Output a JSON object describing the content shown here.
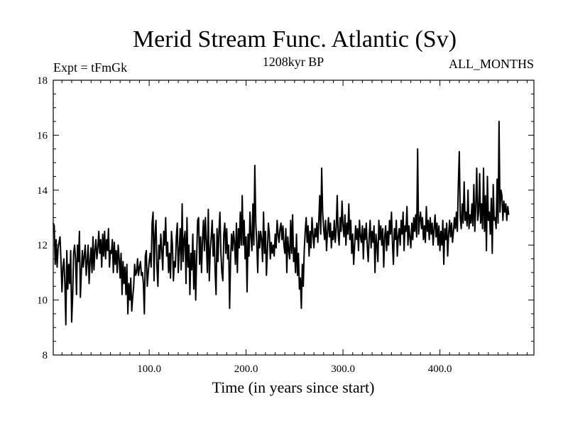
{
  "chart_data": {
    "type": "line",
    "title": "Merid Stream Func. Atlantic (Sv)",
    "subtitle_left": "Expt = tFmGk",
    "subtitle_center": "1208kyr BP",
    "subtitle_right": "ALL_MONTHS",
    "xlabel": "Time (in years since start)",
    "ylabel": "",
    "xlim": [
      1,
      497
    ],
    "ylim": [
      8,
      18
    ],
    "x_ticks": [
      100,
      200,
      300,
      400
    ],
    "x_tick_labels": [
      "100.0",
      "200.0",
      "300.0",
      "400.0"
    ],
    "y_ticks": [
      8,
      10,
      12,
      14,
      16,
      18
    ],
    "y_tick_labels": [
      "8",
      "10",
      "12",
      "14",
      "16",
      "18"
    ],
    "x_minor_step": 10,
    "y_minor_step": 0.5,
    "grid": false,
    "series": [
      {
        "name": "ALL_MONTHS",
        "color": "#000000",
        "x_start": 1,
        "x_step": 1,
        "values": [
          12.8,
          12.7,
          11.3,
          12.2,
          11.2,
          11.9,
          12.1,
          12.3,
          11.4,
          10.3,
          11.2,
          11.5,
          10.6,
          9.1,
          11.8,
          10.4,
          11.3,
          10.6,
          11.8,
          9.2,
          10.1,
          11.7,
          12.0,
          11.5,
          10.2,
          12.0,
          11.4,
          12.5,
          10.1,
          11.0,
          11.8,
          11.2,
          11.6,
          12.0,
          10.9,
          11.4,
          12.0,
          10.6,
          11.4,
          11.9,
          11.0,
          12.3,
          11.1,
          11.8,
          12.2,
          11.5,
          11.9,
          12.5,
          11.7,
          12.2,
          11.2,
          12.4,
          11.6,
          12.5,
          11.5,
          12.2,
          11.8,
          12.6,
          11.2,
          11.8,
          11.7,
          12.2,
          11.0,
          12.1,
          11.3,
          11.8,
          11.0,
          12.0,
          11.5,
          10.8,
          11.7,
          10.2,
          11.4,
          10.6,
          11.2,
          10.2,
          11.3,
          9.5,
          10.6,
          10.0,
          10.8,
          9.6,
          10.1,
          10.5,
          11.3,
          10.9,
          11.0,
          11.5,
          10.9,
          11.2,
          11.4,
          10.9,
          11.0,
          10.6,
          9.5,
          11.6,
          11.8,
          10.5,
          11.0,
          11.4,
          11.7,
          11.2,
          12.8,
          13.2,
          10.7,
          12.4,
          12.9,
          11.2,
          10.5,
          12.0,
          11.5,
          12.4,
          11.8,
          11.1,
          12.5,
          12.0,
          13.0,
          11.6,
          12.1,
          11.0,
          11.7,
          10.8,
          12.5,
          12.0,
          10.7,
          11.4,
          11.2,
          12.3,
          12.8,
          11.0,
          11.8,
          12.6,
          11.1,
          13.5,
          11.4,
          12.2,
          12.5,
          10.6,
          13.0,
          11.2,
          12.0,
          10.2,
          11.7,
          11.1,
          12.4,
          10.4,
          11.8,
          10.0,
          11.6,
          12.9,
          13.0,
          11.3,
          12.3,
          11.0,
          12.2,
          12.9,
          11.8,
          13.0,
          12.1,
          11.0,
          13.3,
          10.7,
          11.8,
          12.3,
          12.9,
          11.6,
          12.4,
          11.1,
          10.2,
          12.6,
          11.4,
          12.5,
          13.2,
          11.7,
          11.0,
          10.7,
          12.4,
          12.8,
          11.7,
          12.6,
          11.5,
          12.0,
          9.7,
          11.5,
          12.4,
          11.8,
          12.5,
          12.1,
          11.3,
          12.8,
          11.0,
          12.6,
          11.9,
          13.2,
          12.0,
          13.8,
          12.0,
          12.9,
          11.5,
          12.3,
          10.3,
          12.4,
          11.6,
          13.2,
          12.3,
          11.8,
          13.5,
          12.0,
          14.9,
          12.8,
          12.1,
          11.0,
          12.5,
          11.9,
          12.5,
          12.2,
          11.4,
          13.2,
          11.7,
          12.5,
          10.9,
          11.8,
          12.8,
          12.4,
          11.5,
          12.1,
          11.7,
          12.0,
          11.6,
          12.4,
          11.9,
          12.9,
          12.4,
          12.1,
          12.6,
          12.8,
          12.2,
          12.7,
          12.0,
          11.7,
          12.6,
          11.0,
          12.3,
          11.8,
          11.5,
          12.9,
          11.7,
          13.1,
          11.4,
          11.9,
          11.0,
          12.4,
          10.9,
          11.7,
          10.4,
          10.8,
          9.7,
          11.3,
          10.5,
          11.8,
          12.5,
          13.0,
          12.1,
          12.7,
          11.6,
          12.5,
          11.9,
          13.0,
          12.4,
          11.9,
          12.6,
          12.3,
          12.8,
          12.1,
          12.9,
          13.8,
          12.4,
          14.8,
          13.2,
          12.6,
          12.2,
          12.9,
          11.8,
          12.5,
          13.0,
          12.3,
          12.8,
          11.9,
          12.5,
          12.2,
          12.9,
          12.1,
          12.6,
          13.8,
          12.4,
          12.0,
          13.0,
          12.5,
          13.6,
          12.7,
          12.3,
          13.1,
          12.0,
          12.8,
          12.4,
          13.5,
          12.2,
          12.9,
          11.7,
          12.4,
          11.3,
          12.0,
          12.7,
          12.2,
          12.6,
          11.8,
          12.9,
          12.3,
          12.1,
          12.7,
          11.5,
          12.6,
          12.2,
          12.8,
          12.0,
          11.4,
          12.3,
          12.9,
          11.9,
          12.5,
          12.1,
          12.7,
          11.0,
          12.4,
          12.0,
          11.4,
          12.9,
          12.2,
          12.7,
          12.0,
          12.6,
          11.2,
          12.3,
          12.7,
          11.8,
          12.5,
          12.0,
          12.9,
          12.4,
          13.2,
          12.1,
          11.3,
          12.6,
          12.2,
          12.9,
          11.6,
          12.3,
          12.6,
          12.0,
          12.9,
          12.4,
          13.2,
          11.8,
          12.7,
          12.5,
          13.4,
          12.0,
          12.7,
          12.3,
          11.9,
          12.8,
          12.2,
          13.0,
          12.5,
          13.1,
          12.3,
          15.5,
          12.4,
          12.9,
          13.2,
          12.6,
          13.0,
          12.2,
          12.7,
          12.1,
          13.4,
          12.5,
          12.9,
          12.2,
          13.0,
          12.4,
          12.8,
          12.0,
          12.6,
          13.1,
          12.3,
          12.8,
          12.0,
          12.7,
          11.8,
          12.5,
          12.0,
          12.9,
          11.3,
          12.6,
          12.2,
          12.8,
          11.6,
          12.4,
          12.9,
          12.3,
          12.8,
          12.1,
          12.5,
          13.0,
          12.6,
          13.2,
          12.5,
          14.2,
          15.4,
          13.0,
          12.6,
          13.5,
          12.8,
          14.3,
          12.9,
          13.2,
          12.7,
          14.0,
          12.6,
          13.1,
          12.8,
          13.5,
          12.7,
          14.2,
          12.5,
          13.4,
          14.8,
          12.9,
          13.2,
          14.6,
          12.8,
          13.5,
          12.6,
          14.8,
          12.5,
          13.8,
          11.8,
          14.5,
          12.9,
          13.2,
          12.4,
          13.7,
          11.7,
          14.2,
          12.9,
          13.0,
          12.6,
          14.4,
          12.8,
          16.5,
          13.2,
          14.0,
          13.8,
          12.9,
          13.6,
          13.2,
          13.5,
          12.9,
          13.4,
          13.1
        ]
      }
    ]
  }
}
